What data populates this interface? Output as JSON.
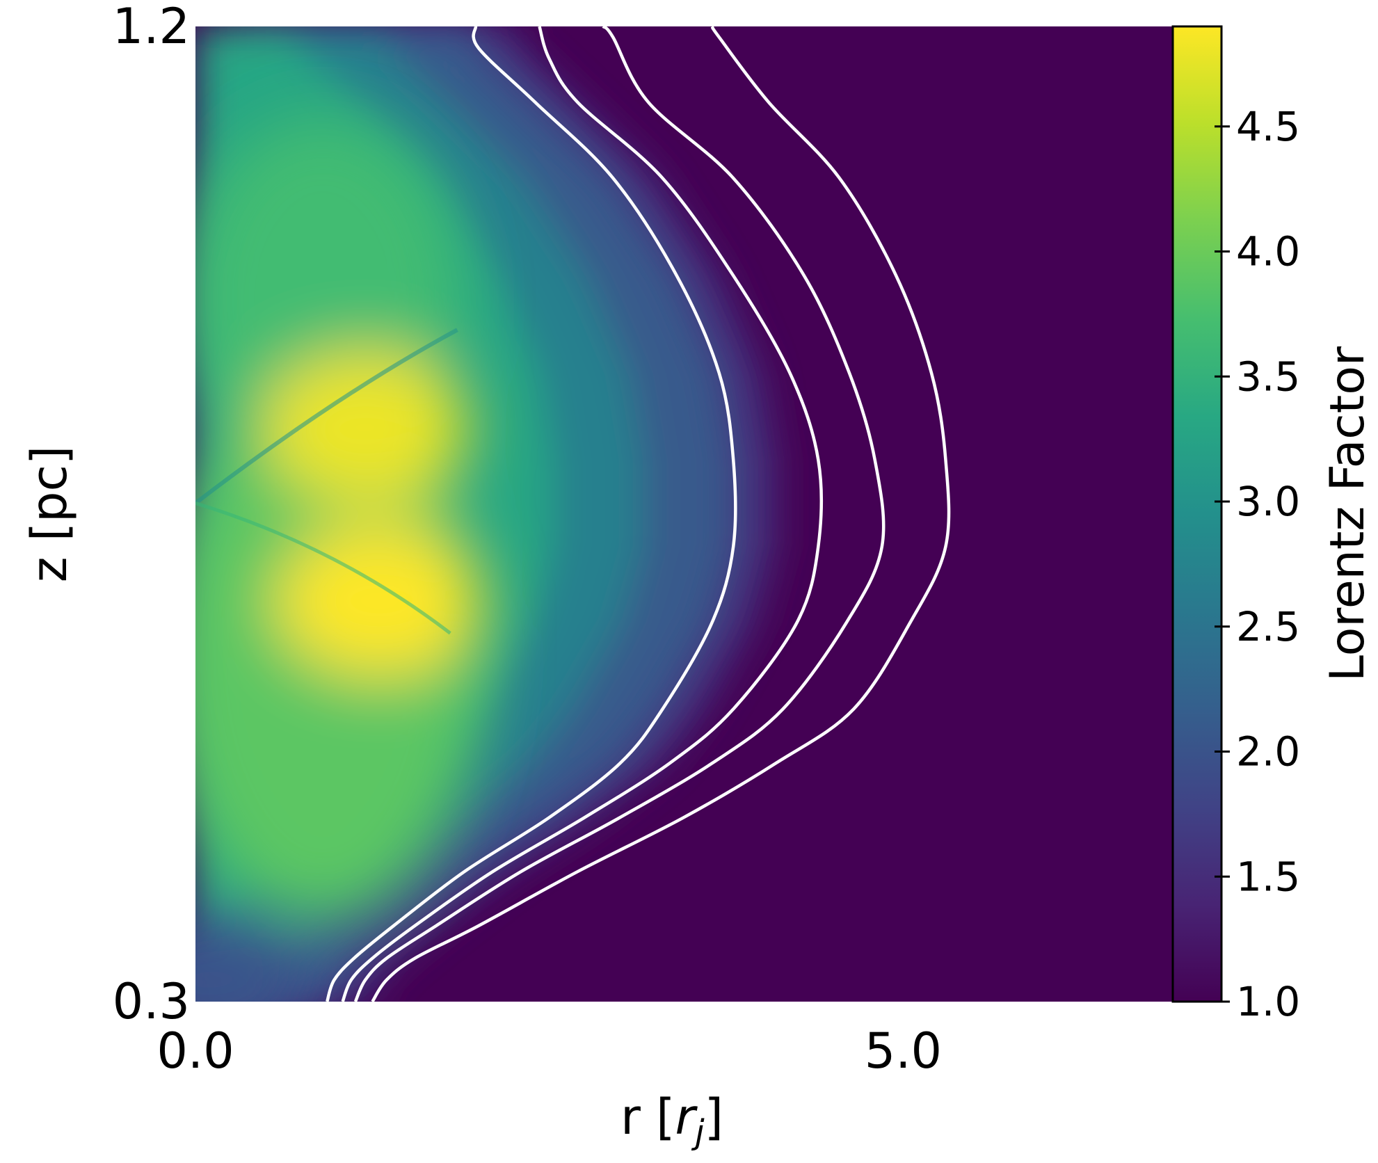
{
  "chart_data": {
    "type": "heatmap",
    "title": "",
    "xlabel": "r [",
    "xlabel_italic": "r",
    "xlabel_sub": "j",
    "xlabel_close": "]",
    "ylabel": "z [pc]",
    "xlim": [
      0.0,
      6.9
    ],
    "ylim": [
      0.3,
      1.2
    ],
    "x_ticks": [
      {
        "value": 0.0,
        "label": "0.0"
      },
      {
        "value": 5.0,
        "label": "5.0"
      }
    ],
    "y_ticks": [
      {
        "value": 0.3,
        "label": "0.3"
      },
      {
        "value": 1.2,
        "label": "1.2"
      }
    ],
    "colorbar": {
      "label": "Lorentz Factor",
      "colormap": "viridis",
      "range": [
        1.0,
        4.9
      ],
      "ticks": [
        {
          "value": 1.0,
          "label": "1.0"
        },
        {
          "value": 1.5,
          "label": "1.5"
        },
        {
          "value": 2.0,
          "label": "2.0"
        },
        {
          "value": 2.5,
          "label": "2.5"
        },
        {
          "value": 3.0,
          "label": "3.0"
        },
        {
          "value": 3.5,
          "label": "3.5"
        },
        {
          "value": 4.0,
          "label": "4.0"
        },
        {
          "value": 4.5,
          "label": "4.5"
        }
      ]
    },
    "field_description": {
      "axis_value": 3.0,
      "peaks": [
        {
          "r": 1.3,
          "z": 0.67,
          "value": 4.9
        },
        {
          "r": 1.2,
          "z": 0.83,
          "value": 4.8
        }
      ],
      "shock_vertex": {
        "r": 0.0,
        "z": 0.76
      }
    },
    "contour_color": "#ffffff",
    "contours": [
      {
        "r": [
          0.93,
          0.98,
          1.12,
          1.4,
          1.9,
          2.5,
          3.0,
          3.3,
          3.65,
          3.8,
          3.8,
          3.7,
          3.4,
          2.95,
          2.4,
          2.0,
          1.98
        ],
        "z": [
          0.3,
          0.32,
          0.34,
          0.37,
          0.42,
          0.47,
          0.52,
          0.57,
          0.65,
          0.72,
          0.8,
          0.88,
          0.97,
          1.06,
          1.13,
          1.18,
          1.2
        ]
      },
      {
        "r": [
          1.04,
          1.1,
          1.25,
          1.55,
          2.1,
          2.75,
          3.35,
          3.8,
          4.25,
          4.4,
          4.4,
          4.2,
          3.8,
          3.3,
          2.7,
          2.5,
          2.43
        ],
        "z": [
          0.3,
          0.32,
          0.34,
          0.37,
          0.42,
          0.47,
          0.52,
          0.57,
          0.65,
          0.72,
          0.8,
          0.88,
          0.97,
          1.06,
          1.13,
          1.17,
          1.2
        ]
      },
      {
        "r": [
          1.13,
          1.2,
          1.35,
          1.7,
          2.3,
          3.0,
          3.65,
          4.15,
          4.6,
          4.85,
          4.8,
          4.62,
          4.3,
          3.8,
          3.2,
          2.95,
          2.88
        ],
        "z": [
          0.3,
          0.32,
          0.34,
          0.37,
          0.42,
          0.47,
          0.52,
          0.57,
          0.65,
          0.72,
          0.8,
          0.88,
          0.97,
          1.06,
          1.13,
          1.19,
          1.2
        ]
      },
      {
        "r": [
          1.25,
          1.35,
          1.55,
          2.0,
          2.7,
          3.45,
          4.1,
          4.65,
          5.05,
          5.3,
          5.3,
          5.2,
          4.95,
          4.55,
          4.05,
          3.7,
          3.65
        ],
        "z": [
          0.3,
          0.32,
          0.34,
          0.37,
          0.42,
          0.47,
          0.52,
          0.57,
          0.65,
          0.72,
          0.8,
          0.88,
          0.97,
          1.06,
          1.13,
          1.19,
          1.2
        ]
      }
    ]
  }
}
